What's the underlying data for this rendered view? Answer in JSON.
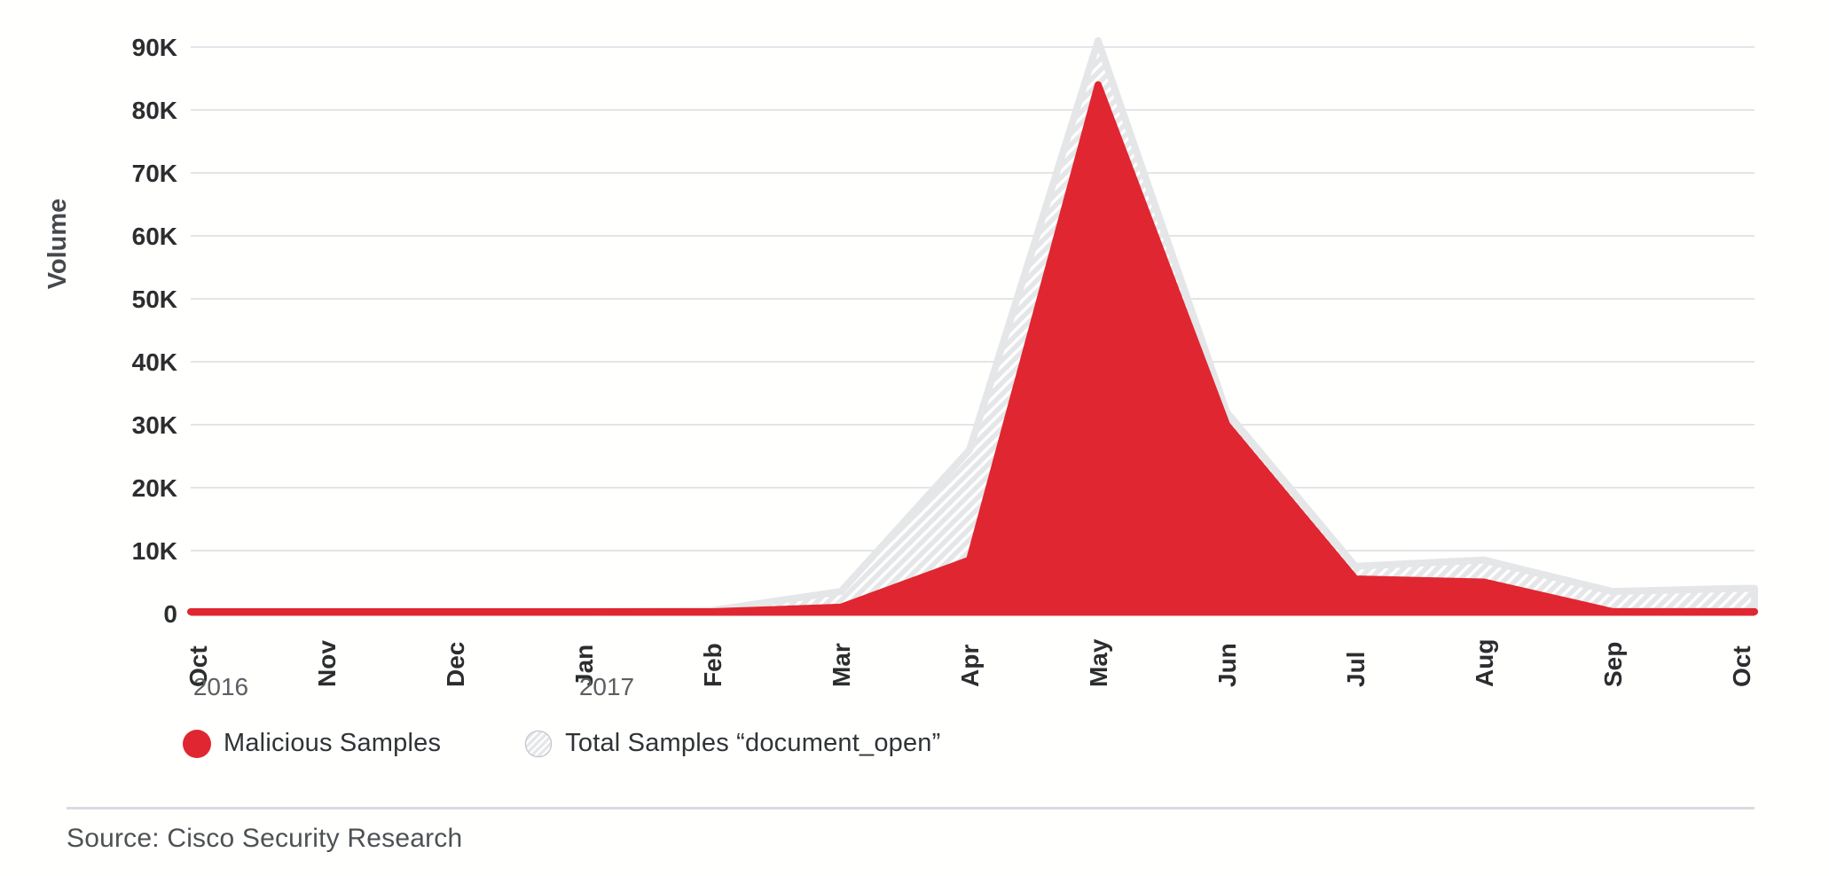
{
  "chart_data": {
    "type": "area",
    "title": "",
    "xlabel": "",
    "ylabel": "Volume",
    "grid": true,
    "legend_position": "bottom-left",
    "x_categories": [
      "Oct",
      "Nov",
      "Dec",
      "Jan",
      "Feb",
      "Mar",
      "Apr",
      "May",
      "Jun",
      "Jul",
      "Aug",
      "Sep",
      "Oct"
    ],
    "x_year_markers": [
      {
        "label": "2016",
        "index": 0
      },
      {
        "label": "2017",
        "index": 3
      }
    ],
    "ylim": [
      0,
      90000
    ],
    "yticks": [
      {
        "v": 0,
        "label": "0"
      },
      {
        "v": 10000,
        "label": "10K"
      },
      {
        "v": 20000,
        "label": "20K"
      },
      {
        "v": 30000,
        "label": "30K"
      },
      {
        "v": 40000,
        "label": "40K"
      },
      {
        "v": 50000,
        "label": "50K"
      },
      {
        "v": 60000,
        "label": "60K"
      },
      {
        "v": 70000,
        "label": "70K"
      },
      {
        "v": 80000,
        "label": "80K"
      },
      {
        "v": 90000,
        "label": "90K"
      }
    ],
    "series": [
      {
        "name": "Total Samples “document_open”",
        "style": "hatched-gray",
        "values": [
          0,
          0,
          0,
          0,
          500,
          3500,
          26000,
          91000,
          32000,
          7500,
          8500,
          3500,
          4000
        ]
      },
      {
        "name": "Malicious Samples",
        "style": "solid-red",
        "values": [
          0,
          0,
          0,
          0,
          0,
          1000,
          8500,
          84000,
          30000,
          5500,
          5000,
          300,
          300
        ]
      }
    ],
    "legend": [
      {
        "label": "Malicious Samples",
        "swatch": "red-circle"
      },
      {
        "label": "Total Samples “document_open”",
        "swatch": "hatched-circle"
      }
    ],
    "colors": {
      "malicious_red": "#e02630",
      "total_base_gray": "#e5e6e8",
      "hatch_stripe": "#ffffff",
      "gridline": "#e3e5e8",
      "zero_axis": "#e02630",
      "tick_text": "#2c2d2f",
      "year_text": "#5c5e61",
      "axis_title_text": "#46494c",
      "legend_swatch_border": "#c8cacd"
    }
  },
  "footer": {
    "source": "Source: Cisco Security Research"
  }
}
